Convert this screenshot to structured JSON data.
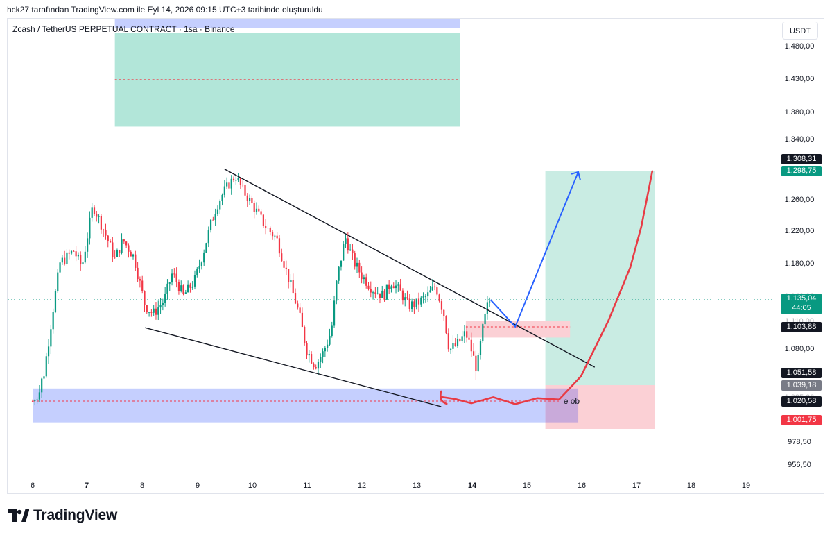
{
  "header": {
    "credit": "hck27 tarafından TradingView.com ile Eyl 14, 2026 09:15 UTC+3 tarihinde oluşturuldu"
  },
  "symbol": {
    "title": "Zcash / TetherUS PERPETUAL CONTRACT · 1sa · Binance"
  },
  "currency_button": "USDT",
  "brand": {
    "name": "TradingView"
  },
  "annotation_text": "e ob",
  "colors": {
    "up": "#089981",
    "down": "#f23645",
    "grid_bg": "#ffffff",
    "target_zone": "#b2e6d9",
    "ob_zone": "#c5cffe",
    "stop_zone": "#fbd0d5",
    "arrow_blue": "#2962ff",
    "curve_red": "#e83b45",
    "price_line": "#089981"
  },
  "chart_data": {
    "type": "candlestick",
    "y_axis": {
      "ticks": [
        "1.480,00",
        "1.430,00",
        "1.380,00",
        "1.340,00",
        "1.260,00",
        "1.220,00",
        "1.180,00",
        "1.080,00",
        "978,50",
        "956,50"
      ],
      "partial_ticks": [
        "1.140,00",
        "1.110,00",
        "1.035,00"
      ]
    },
    "x_axis": {
      "ticks": [
        "6",
        "7",
        "8",
        "9",
        "10",
        "11",
        "12",
        "13",
        "14",
        "15",
        "16",
        "17",
        "18",
        "19"
      ],
      "bold_ticks": [
        "7",
        "14"
      ]
    },
    "price_labels": [
      {
        "value": "1.308,31",
        "style": "dark"
      },
      {
        "value": "1.298,75",
        "style": "green"
      },
      {
        "value": "1.135,04",
        "sub": "44:05",
        "style": "green"
      },
      {
        "value": "1.103,88",
        "style": "dark"
      },
      {
        "value": "1.051,58",
        "style": "dark"
      },
      {
        "value": "1.039,18",
        "style": "gray"
      },
      {
        "value": "1.020,58",
        "style": "dark"
      },
      {
        "value": "1.001,75",
        "style": "red"
      }
    ],
    "last_price": 1135.04,
    "price_path": [
      [
        6.0,
        1021
      ],
      [
        6.2,
        1048
      ],
      [
        6.5,
        1180
      ],
      [
        6.75,
        1195
      ],
      [
        6.9,
        1175
      ],
      [
        7.1,
        1252
      ],
      [
        7.3,
        1220
      ],
      [
        7.5,
        1185
      ],
      [
        7.65,
        1208
      ],
      [
        7.85,
        1187
      ],
      [
        8.05,
        1128
      ],
      [
        8.2,
        1118
      ],
      [
        8.4,
        1135
      ],
      [
        8.55,
        1168
      ],
      [
        8.75,
        1140
      ],
      [
        8.95,
        1158
      ],
      [
        9.1,
        1190
      ],
      [
        9.25,
        1228
      ],
      [
        9.35,
        1250
      ],
      [
        9.5,
        1272
      ],
      [
        9.7,
        1292
      ],
      [
        9.85,
        1270
      ],
      [
        10.05,
        1248
      ],
      [
        10.25,
        1225
      ],
      [
        10.45,
        1210
      ],
      [
        10.65,
        1165
      ],
      [
        10.85,
        1120
      ],
      [
        11.0,
        1078
      ],
      [
        11.15,
        1060
      ],
      [
        11.3,
        1075
      ],
      [
        11.45,
        1100
      ],
      [
        11.55,
        1160
      ],
      [
        11.7,
        1212
      ],
      [
        11.85,
        1182
      ],
      [
        12.0,
        1165
      ],
      [
        12.2,
        1148
      ],
      [
        12.4,
        1140
      ],
      [
        12.55,
        1158
      ],
      [
        12.7,
        1145
      ],
      [
        12.85,
        1128
      ],
      [
        13.0,
        1130
      ],
      [
        13.2,
        1140
      ],
      [
        13.35,
        1152
      ],
      [
        13.5,
        1118
      ],
      [
        13.6,
        1078
      ],
      [
        13.75,
        1085
      ],
      [
        13.9,
        1097
      ],
      [
        14.0,
        1078
      ],
      [
        14.1,
        1055
      ],
      [
        14.2,
        1098
      ],
      [
        14.3,
        1130
      ],
      [
        14.35,
        1135
      ]
    ],
    "lines": {
      "upper_trendline": {
        "from": [
          9.5,
          1300
        ],
        "to": [
          16.25,
          1058
        ]
      },
      "lower_trendline": {
        "from": [
          8.05,
          1103
        ],
        "to": [
          13.45,
          1015
        ]
      }
    },
    "zones": {
      "top_target": {
        "x": [
          7.5,
          13.8
        ],
        "y": [
          1358,
          1497
        ],
        "mid": 1428
      },
      "ob_zone": {
        "x": [
          6.0,
          15.35
        ],
        "y": [
          999,
          1038
        ],
        "mid": 1020.6
      },
      "entry_zone": {
        "x": [
          13.9,
          15.8
        ],
        "y": [
          1092,
          1110
        ],
        "mid": 1103.9
      },
      "long_target": {
        "x": [
          15.35,
          17.35
        ],
        "y": [
          1039.18,
          1298.75
        ]
      },
      "long_stop": {
        "x": [
          15.35,
          17.35
        ],
        "y": [
          992,
          1039.18
        ]
      }
    },
    "projection_arrow": [
      [
        14.35,
        1135
      ],
      [
        14.8,
        1104
      ],
      [
        15.95,
        1297
      ]
    ],
    "hand_curve": [
      [
        13.45,
        1035
      ],
      [
        13.7,
        1028
      ],
      [
        14.0,
        1025
      ],
      [
        14.4,
        1022
      ],
      [
        14.8,
        1022
      ],
      [
        15.2,
        1020
      ],
      [
        15.6,
        1026
      ],
      [
        16.0,
        1048
      ],
      [
        16.5,
        1110
      ],
      [
        16.9,
        1175
      ],
      [
        17.1,
        1225
      ],
      [
        17.3,
        1298
      ]
    ]
  }
}
